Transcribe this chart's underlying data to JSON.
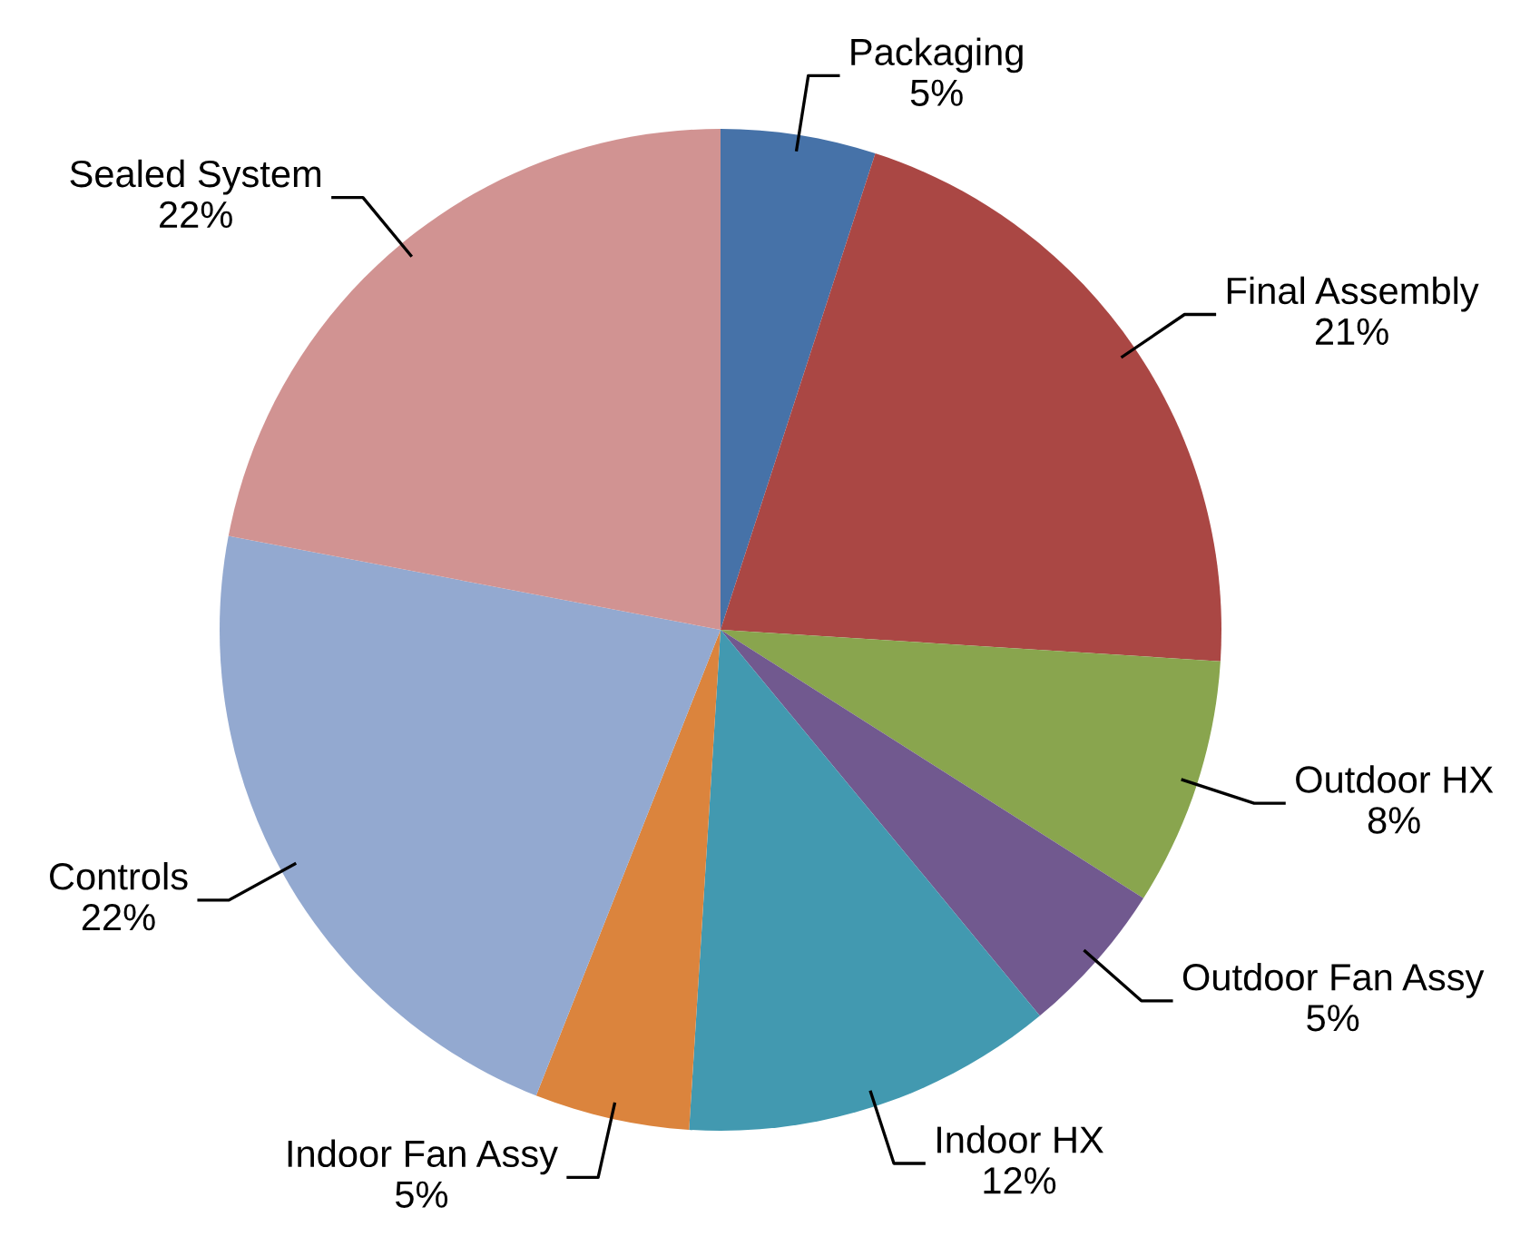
{
  "chart_data": {
    "type": "pie",
    "categories": [
      "Packaging",
      "Final Assembly",
      "Outdoor HX",
      "Outdoor Fan Assy",
      "Indoor HX",
      "Indoor Fan Assy",
      "Controls",
      "Sealed System"
    ],
    "values": [
      5,
      21,
      8,
      5,
      12,
      5,
      22,
      22
    ],
    "value_labels": [
      "5%",
      "21%",
      "8%",
      "5%",
      "12%",
      "5%",
      "22%",
      "22%"
    ],
    "colors": [
      "#4672a8",
      "#aa4744",
      "#89a54e",
      "#71598f",
      "#4299b0",
      "#db843d",
      "#93a9d0",
      "#d19392"
    ],
    "legend": false
  }
}
